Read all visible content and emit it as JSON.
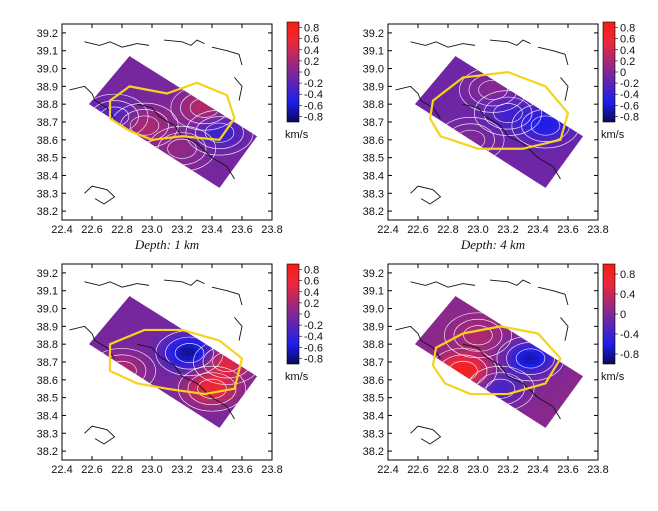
{
  "chart_data": [
    {
      "type": "heatmap",
      "caption": "Depth: 1 km",
      "xticks": [
        "22.4",
        "22.6",
        "22.8",
        "23.0",
        "23.2",
        "23.4",
        "23.6",
        "23.8"
      ],
      "yticks": [
        "39.2",
        "39.1",
        "39.0",
        "38.9",
        "38.8",
        "38.7",
        "38.6",
        "38.5",
        "38.4",
        "38.3",
        "38.2"
      ],
      "xlim": [
        22.4,
        23.8
      ],
      "ylim": [
        38.15,
        39.25
      ],
      "colorbar": {
        "ticks": [
          "0.8",
          "0.6",
          "0.4",
          "0.2",
          "0",
          "-0.2",
          "-0.4",
          "-0.6",
          "-0.8"
        ],
        "unit": "km/s",
        "range": [
          -0.9,
          0.9
        ]
      },
      "anomalies": [
        {
          "lon": 23.35,
          "lat": 38.78,
          "value": 0.35
        },
        {
          "lon": 22.95,
          "lat": 38.68,
          "value": 0.3
        },
        {
          "lon": 23.45,
          "lat": 38.64,
          "value": -0.35
        },
        {
          "lon": 22.75,
          "lat": 38.73,
          "value": -0.25
        },
        {
          "lon": 23.2,
          "lat": 38.55,
          "value": 0.15
        }
      ],
      "background_value": -0.05
    },
    {
      "type": "heatmap",
      "caption": "Depth: 4 km",
      "xticks": [
        "22.4",
        "22.6",
        "22.8",
        "23.0",
        "23.2",
        "23.4",
        "23.6",
        "23.8"
      ],
      "yticks": [
        "39.2",
        "39.1",
        "39.0",
        "38.9",
        "38.8",
        "38.7",
        "38.6",
        "38.5",
        "38.4",
        "38.3",
        "38.2"
      ],
      "xlim": [
        22.4,
        23.8
      ],
      "ylim": [
        38.15,
        39.25
      ],
      "colorbar": {
        "ticks": [
          "0.8",
          "0.6",
          "0.4",
          "0.2",
          "0",
          "-0.2",
          "-0.4",
          "-0.6",
          "-0.8"
        ],
        "unit": "km/s",
        "range": [
          -0.9,
          0.9
        ]
      },
      "anomalies": [
        {
          "lon": 23.45,
          "lat": 38.68,
          "value": -0.45
        },
        {
          "lon": 23.1,
          "lat": 38.88,
          "value": 0.15
        },
        {
          "lon": 22.95,
          "lat": 38.6,
          "value": 0.1
        },
        {
          "lon": 23.2,
          "lat": 38.75,
          "value": -0.25
        }
      ],
      "background_value": -0.1
    },
    {
      "type": "heatmap",
      "caption": "",
      "xticks": [
        "22.4",
        "22.6",
        "22.8",
        "23.0",
        "23.2",
        "23.4",
        "23.6",
        "23.8"
      ],
      "yticks": [
        "39.2",
        "39.1",
        "39.0",
        "38.9",
        "38.8",
        "38.7",
        "38.6",
        "38.5",
        "38.4",
        "38.3",
        "38.2"
      ],
      "xlim": [
        22.4,
        23.8
      ],
      "ylim": [
        38.15,
        39.25
      ],
      "colorbar": {
        "ticks": [
          "0.8",
          "0.6",
          "0.4",
          "0.2",
          "0",
          "-0.2",
          "-0.4",
          "-0.6",
          "-0.8"
        ],
        "unit": "km/s",
        "range": [
          -0.9,
          0.9
        ]
      },
      "anomalies": [
        {
          "lon": 23.25,
          "lat": 38.75,
          "value": -0.75
        },
        {
          "lon": 23.5,
          "lat": 38.7,
          "value": 0.55
        },
        {
          "lon": 23.4,
          "lat": 38.55,
          "value": 0.65
        },
        {
          "lon": 22.8,
          "lat": 38.65,
          "value": 0.3
        }
      ],
      "background_value": -0.05
    },
    {
      "type": "heatmap",
      "caption": "",
      "xticks": [
        "22.4",
        "22.6",
        "22.8",
        "23.0",
        "23.2",
        "23.4",
        "23.6",
        "23.8"
      ],
      "yticks": [
        "39.2",
        "39.1",
        "39.0",
        "38.9",
        "38.8",
        "38.7",
        "38.6",
        "38.5",
        "38.4",
        "38.3",
        "38.2"
      ],
      "xlim": [
        22.4,
        23.8
      ],
      "ylim": [
        38.15,
        39.25
      ],
      "colorbar": {
        "ticks": [
          "0.8",
          "0.4",
          "0",
          "-0.4",
          "-0.8"
        ],
        "unit": "km/s",
        "range": [
          -1.0,
          1.0
        ]
      },
      "anomalies": [
        {
          "lon": 22.9,
          "lat": 38.65,
          "value": 0.85
        },
        {
          "lon": 23.35,
          "lat": 38.72,
          "value": -0.8
        },
        {
          "lon": 23.15,
          "lat": 38.55,
          "value": -0.4
        },
        {
          "lon": 23.0,
          "lat": 38.85,
          "value": 0.2
        }
      ],
      "background_value": 0.05
    }
  ]
}
